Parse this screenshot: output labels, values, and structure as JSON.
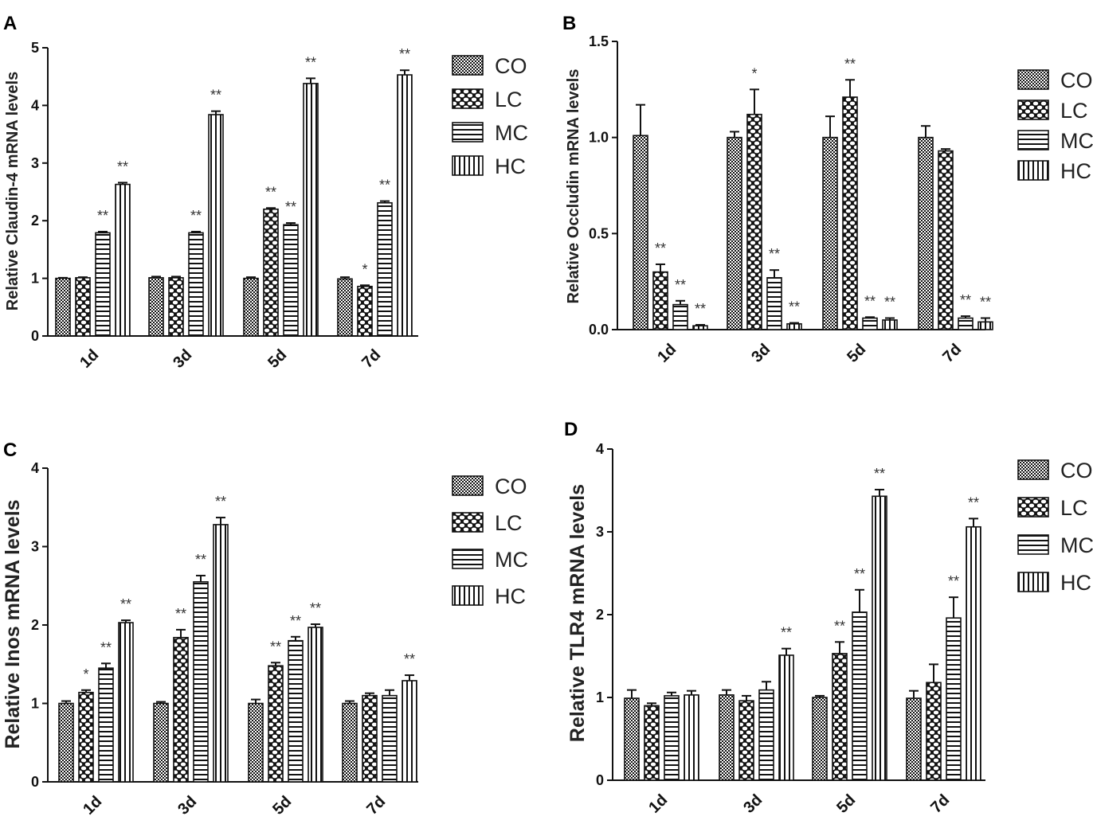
{
  "legend": {
    "CO": "CO",
    "LC": "LC",
    "MC": "MC",
    "HC": "HC"
  },
  "chart_data": [
    {
      "panel": "A",
      "type": "bar",
      "ylabel": "Relative Claudin-4 mRNA levels",
      "categories": [
        "1d",
        "3d",
        "5d",
        "7d"
      ],
      "ylim": [
        0,
        5
      ],
      "yticks": [
        "0",
        "1",
        "2",
        "3",
        "4",
        "5"
      ],
      "series": [
        {
          "name": "CO",
          "values": [
            1.0,
            1.01,
            1.0,
            0.99
          ],
          "errors": [
            0.01,
            0.02,
            0.02,
            0.03
          ],
          "sig": [
            "",
            "",
            "",
            ""
          ]
        },
        {
          "name": "LC",
          "values": [
            1.01,
            1.01,
            2.2,
            0.86
          ],
          "errors": [
            0.01,
            0.02,
            0.02,
            0.02
          ],
          "sig": [
            "",
            "",
            "**",
            "*"
          ]
        },
        {
          "name": "MC",
          "values": [
            1.79,
            1.79,
            1.93,
            2.31
          ],
          "errors": [
            0.02,
            0.02,
            0.03,
            0.03
          ],
          "sig": [
            "**",
            "**",
            "**",
            "**"
          ]
        },
        {
          "name": "HC",
          "values": [
            2.63,
            3.84,
            4.38,
            4.53
          ],
          "errors": [
            0.03,
            0.06,
            0.09,
            0.08
          ],
          "sig": [
            "**",
            "**",
            "**",
            "**"
          ]
        }
      ]
    },
    {
      "panel": "B",
      "type": "bar",
      "ylabel": "Relative Occludin mRNA levels",
      "categories": [
        "1d",
        "3d",
        "5d",
        "7d"
      ],
      "ylim": [
        0,
        1.5
      ],
      "yticks": [
        "0.0",
        "0.5",
        "1.0",
        "1.5"
      ],
      "series": [
        {
          "name": "CO",
          "values": [
            1.01,
            1.0,
            1.0,
            1.0
          ],
          "errors": [
            0.16,
            0.03,
            0.11,
            0.06
          ],
          "sig": [
            "",
            "",
            "",
            ""
          ]
        },
        {
          "name": "LC",
          "values": [
            0.3,
            1.12,
            1.21,
            0.93
          ],
          "errors": [
            0.04,
            0.13,
            0.09,
            0.01
          ],
          "sig": [
            "**",
            "*",
            "**",
            ""
          ]
        },
        {
          "name": "MC",
          "values": [
            0.13,
            0.27,
            0.06,
            0.06
          ],
          "errors": [
            0.02,
            0.04,
            0.005,
            0.01
          ],
          "sig": [
            "**",
            "**",
            "**",
            "**"
          ]
        },
        {
          "name": "HC",
          "values": [
            0.02,
            0.03,
            0.05,
            0.04
          ],
          "errors": [
            0.005,
            0.005,
            0.01,
            0.02
          ],
          "sig": [
            "**",
            "**",
            "**",
            "**"
          ]
        }
      ]
    },
    {
      "panel": "C",
      "type": "bar",
      "ylabel": "Relative Inos mRNA levels",
      "categories": [
        "1d",
        "3d",
        "5d",
        "7d"
      ],
      "ylim": [
        0,
        4
      ],
      "yticks": [
        "0",
        "1",
        "2",
        "3",
        "4"
      ],
      "series": [
        {
          "name": "CO",
          "values": [
            1.0,
            1.0,
            1.0,
            1.0
          ],
          "errors": [
            0.03,
            0.02,
            0.05,
            0.03
          ],
          "sig": [
            "",
            "",
            "",
            ""
          ]
        },
        {
          "name": "LC",
          "values": [
            1.14,
            1.84,
            1.48,
            1.1
          ],
          "errors": [
            0.03,
            0.1,
            0.04,
            0.03
          ],
          "sig": [
            "*",
            "**",
            "**",
            ""
          ]
        },
        {
          "name": "MC",
          "values": [
            1.45,
            2.55,
            1.8,
            1.1
          ],
          "errors": [
            0.06,
            0.08,
            0.05,
            0.07
          ],
          "sig": [
            "**",
            "**",
            "**",
            ""
          ]
        },
        {
          "name": "HC",
          "values": [
            2.03,
            3.28,
            1.97,
            1.29
          ],
          "errors": [
            0.03,
            0.09,
            0.04,
            0.07
          ],
          "sig": [
            "**",
            "**",
            "**",
            "**"
          ]
        }
      ]
    },
    {
      "panel": "D",
      "type": "bar",
      "ylabel": "Relative TLR4 mRNA levels",
      "categories": [
        "1d",
        "3d",
        "5d",
        "7d"
      ],
      "ylim": [
        0,
        4
      ],
      "yticks": [
        "0",
        "1",
        "2",
        "3",
        "4"
      ],
      "series": [
        {
          "name": "CO",
          "values": [
            0.99,
            1.03,
            1.0,
            0.99
          ],
          "errors": [
            0.1,
            0.06,
            0.02,
            0.09
          ],
          "sig": [
            "",
            "",
            "",
            ""
          ]
        },
        {
          "name": "LC",
          "values": [
            0.9,
            0.96,
            1.53,
            1.18
          ],
          "errors": [
            0.03,
            0.06,
            0.14,
            0.22
          ],
          "sig": [
            "",
            "",
            "**",
            ""
          ]
        },
        {
          "name": "MC",
          "values": [
            1.02,
            1.09,
            2.03,
            1.96
          ],
          "errors": [
            0.04,
            0.1,
            0.27,
            0.25
          ],
          "sig": [
            "",
            "",
            "**",
            "**"
          ]
        },
        {
          "name": "HC",
          "values": [
            1.03,
            1.51,
            3.43,
            3.06
          ],
          "errors": [
            0.05,
            0.08,
            0.08,
            0.1
          ],
          "sig": [
            "",
            "**",
            "**",
            "**"
          ]
        }
      ]
    }
  ]
}
